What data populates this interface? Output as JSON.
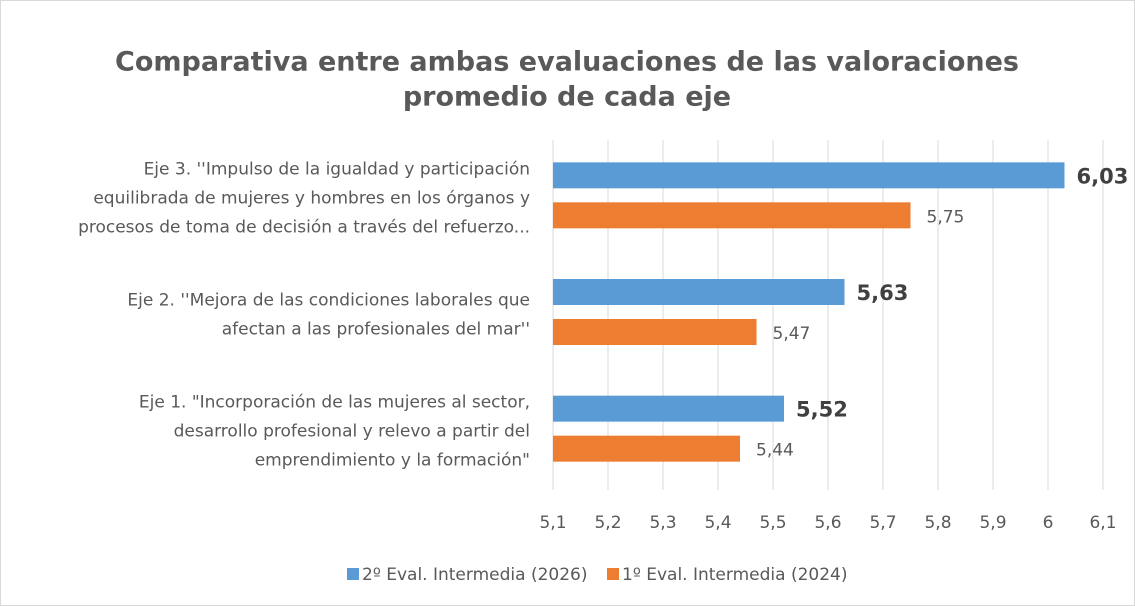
{
  "chart_data": {
    "type": "hbar",
    "title": [
      "Comparativa entre ambas evaluaciones de las valoraciones",
      "promedio de cada eje"
    ],
    "categories": [
      [
        "Eje 3. ''Impulso de la igualdad y participación",
        "equilibrada de mujeres y hombres en los órganos y",
        "procesos de toma de decisión a través del refuerzo..."
      ],
      [
        "Eje 2. ''Mejora de las condiciones laborales que",
        "afectan a las profesionales del mar''"
      ],
      [
        "Eje 1. \"Incorporación de las mujeres al sector,",
        "desarrollo profesional y relevo a partir del",
        "emprendimiento y la formación\""
      ]
    ],
    "series": [
      {
        "name": "2º Eval. Intermedia (2026)",
        "color": "#5b9bd5",
        "values": [
          6.03,
          5.63,
          5.52
        ],
        "value_labels": [
          "6,03",
          "5,63",
          "5,52"
        ],
        "label_bold": true
      },
      {
        "name": "1º Eval. Intermedia (2024)",
        "color": "#ed7d31",
        "values": [
          5.75,
          5.47,
          5.44
        ],
        "value_labels": [
          "5,75",
          "5,47",
          "5,44"
        ],
        "label_bold": false
      }
    ],
    "xlim": [
      5.1,
      6.1
    ],
    "xticks": [
      {
        "value": 5.1,
        "label": "5,1"
      },
      {
        "value": 5.2,
        "label": "5,2"
      },
      {
        "value": 5.3,
        "label": "5,3"
      },
      {
        "value": 5.4,
        "label": "5,4"
      },
      {
        "value": 5.5,
        "label": "5,5"
      },
      {
        "value": 5.6,
        "label": "5,6"
      },
      {
        "value": 5.7,
        "label": "5,7"
      },
      {
        "value": 5.8,
        "label": "5,8"
      },
      {
        "value": 5.9,
        "label": "5,9"
      },
      6,
      {
        "value": 6.1,
        "label": "6,1"
      }
    ],
    "grid": true,
    "legend": "bottom"
  }
}
